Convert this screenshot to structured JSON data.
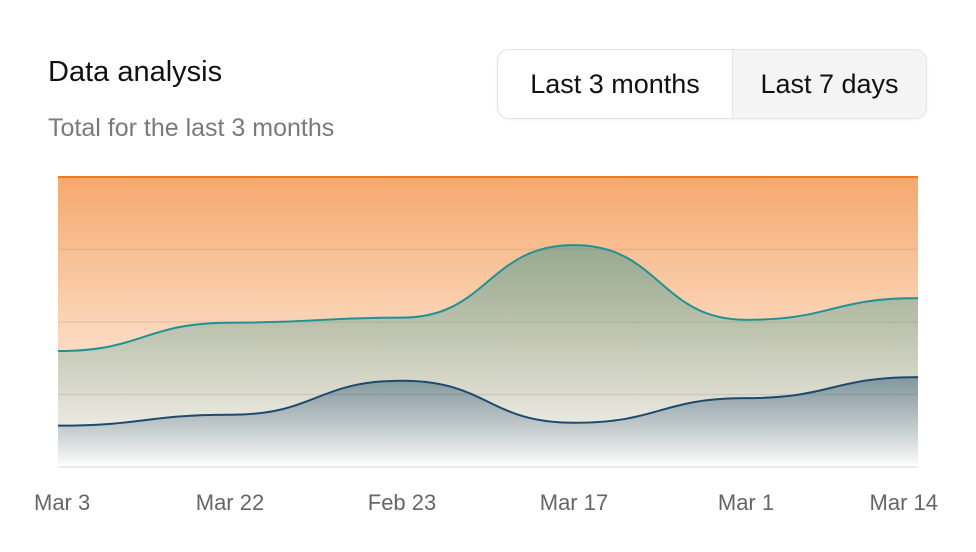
{
  "header": {
    "title": "Data analysis",
    "subtitle": "Total for the last 3 months"
  },
  "buttons": [
    "Last 3 months",
    "Last 7 days"
  ],
  "chart_data": {
    "type": "area",
    "categories": [
      "Mar 3",
      "Mar 22",
      "Feb 23",
      "Mar 17",
      "Mar 1",
      "Mar 14"
    ],
    "series": [
      {
        "color": "#f07a1e",
        "values": [
          400,
          400,
          400,
          400,
          400,
          400
        ]
      },
      {
        "color": "#1f9393",
        "values": [
          160,
          199,
          206,
          306,
          203,
          233
        ]
      },
      {
        "color": "#1e4a6e",
        "values": [
          57,
          72,
          119,
          61,
          95,
          124
        ]
      }
    ],
    "ylim": [
      0,
      400
    ],
    "yticks": [
      0,
      100,
      200,
      300,
      400
    ],
    "grid": true
  }
}
